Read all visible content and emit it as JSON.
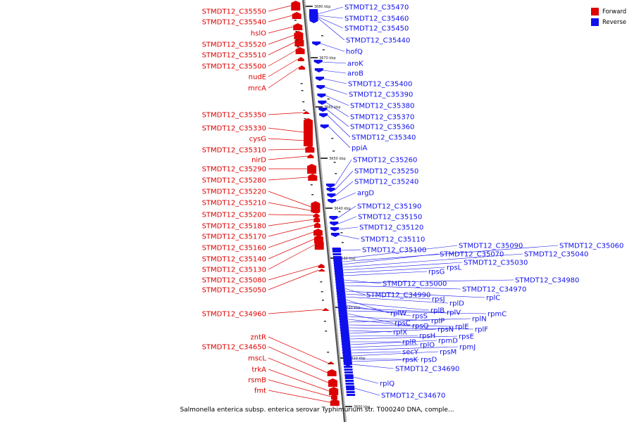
{
  "colors": {
    "forward": "#dd0000",
    "reverse": "#1010ee",
    "backbone": "#9a9a9a"
  },
  "legend": [
    {
      "label": "Forward",
      "color": "#dd0000"
    },
    {
      "label": "Reverse",
      "color": "#1010ee"
    }
  ],
  "caption": "Salmonella enterica subsp. enterica serovar Typhimurium str. T000240 DNA, comple...",
  "scale_ticks": [
    "3680 kbp",
    "3670 kbp",
    "3660 kbp",
    "3650 kbp",
    "3640 kbp",
    "3630 kbp",
    "3620 kbp",
    "3610 kbp",
    "3600 kbp"
  ],
  "forward_labels": [
    "STMDT12_C35550",
    "STMDT12_C35540",
    "hslO",
    "STMDT12_C35520",
    "STMDT12_C35510",
    "STMDT12_C35500",
    "nudE",
    "mrcA",
    "STMDT12_C35350",
    "STMDT12_C35330",
    "cysG",
    "STMDT12_C35310",
    "nirD",
    "STMDT12_C35290",
    "STMDT12_C35280",
    "STMDT12_C35220",
    "STMDT12_C35210",
    "STMDT12_C35200",
    "STMDT12_C35180",
    "STMDT12_C35170",
    "STMDT12_C35160",
    "STMDT12_C35140",
    "STMDT12_C35130",
    "STMDT12_C35080",
    "STMDT12_C35050",
    "STMDT12_C34960",
    "zntR",
    "STMDT12_C34650",
    "mscL",
    "trkA",
    "rsmB",
    "fmt"
  ],
  "reverse_labels": [
    "STMDT12_C35470",
    "STMDT12_C35460",
    "STMDT12_C35450",
    "STMDT12_C35440",
    "hofQ",
    "aroK",
    "aroB",
    "STMDT12_C35400",
    "STMDT12_C35390",
    "STMDT12_C35380",
    "STMDT12_C35370",
    "STMDT12_C35360",
    "STMDT12_C35340",
    "ppiA",
    "STMDT12_C35260",
    "STMDT12_C35250",
    "STMDT12_C35240",
    "argD",
    "STMDT12_C35190",
    "STMDT12_C35150",
    "STMDT12_C35120",
    "STMDT12_C35110",
    "STMDT12_C35100",
    "STMDT12_C35090",
    "STMDT12_C35060",
    "STMDT12_C35070",
    "STMDT12_C35040",
    "STMDT12_C35030",
    "rpsL",
    "rpsG",
    "STMDT12_C35000",
    "STMDT12_C34980",
    "STMDT12_C34970",
    "STMDT12_C34990",
    "rplC",
    "rpsJ",
    "rplD",
    "rplW",
    "rplB",
    "rpsS",
    "rplV",
    "rpmC",
    "rpsC",
    "rplP",
    "rpsQ",
    "rplN",
    "rplE",
    "rplF",
    "rplX",
    "rpsN",
    "rpsH",
    "rpsE",
    "rplR",
    "rpmD",
    "rplO",
    "rpmJ",
    "secY",
    "rpsM",
    "rpsK",
    "rpsD",
    "STMDT12_C34690",
    "rplQ",
    "STMDT12_C34670"
  ]
}
